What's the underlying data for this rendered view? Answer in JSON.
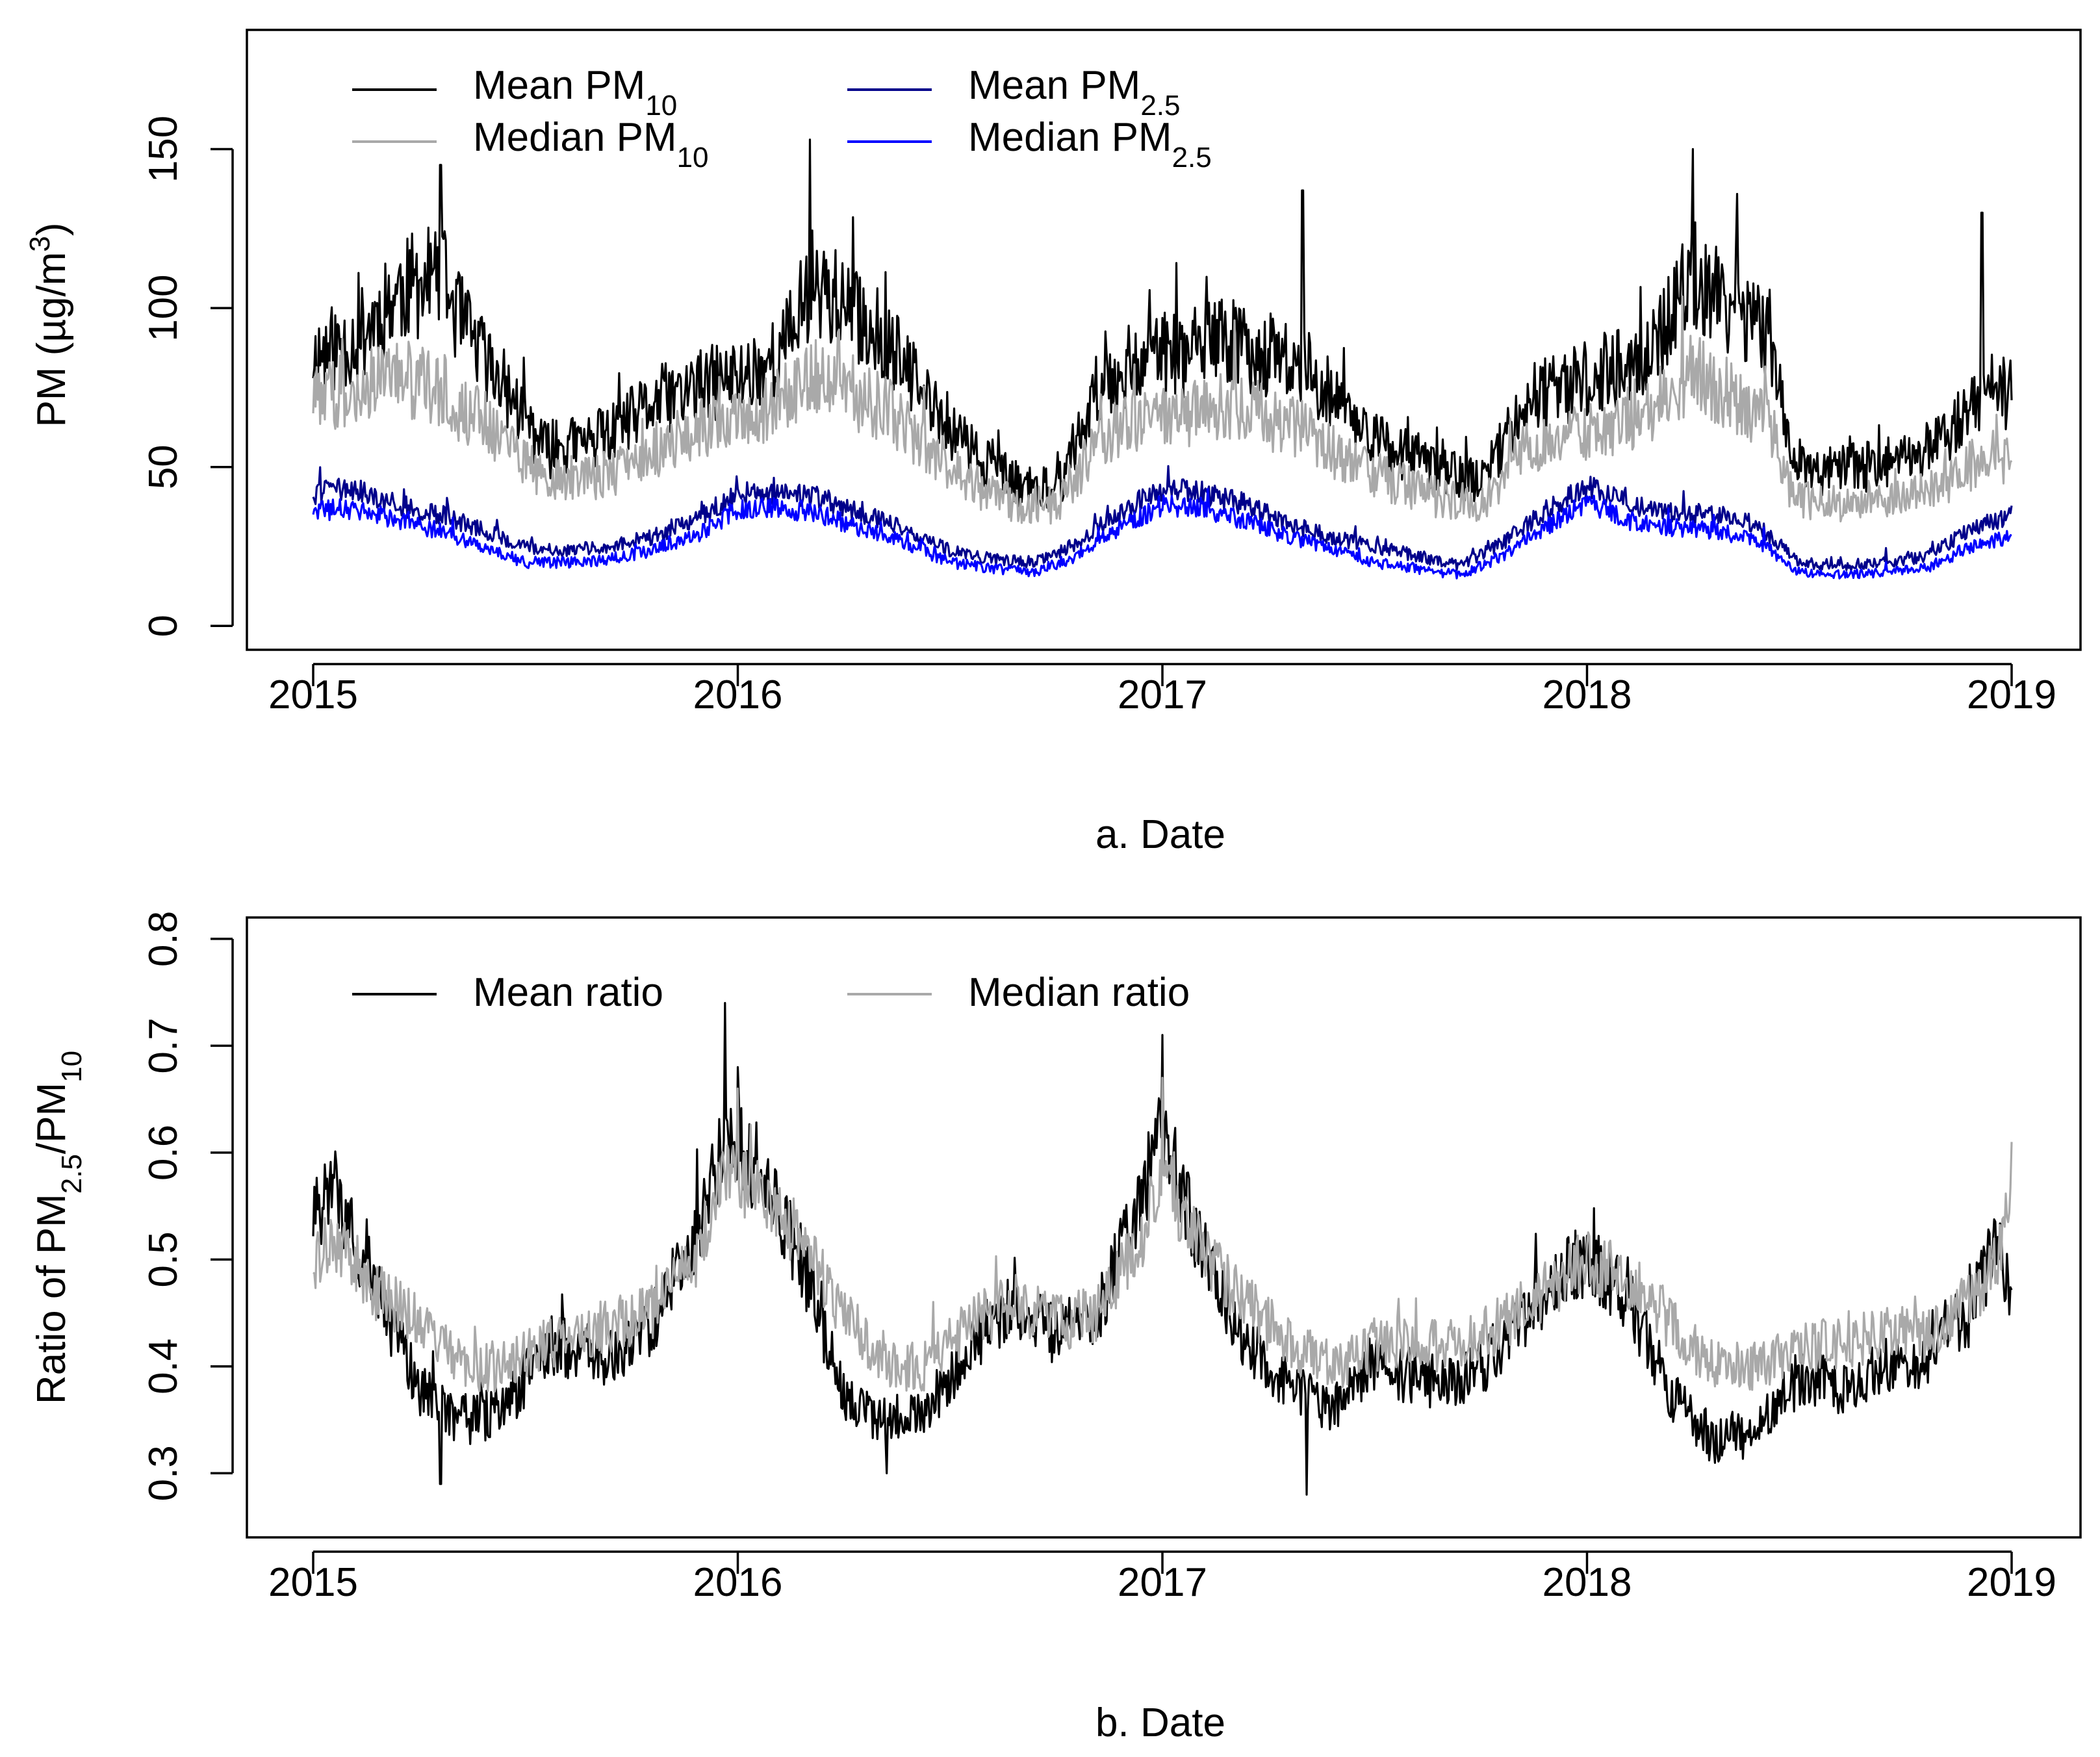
{
  "chart_data": [
    {
      "type": "line",
      "xlabel": "a. Date",
      "ylabel": {
        "base": "PM (µg/m",
        "sup": "3",
        "tail": ")"
      },
      "xlim": [
        2015,
        2019
      ],
      "ylim": [
        -7.5,
        187.5
      ],
      "x_ticks": [
        2015,
        2016,
        2017,
        2018,
        2019
      ],
      "x_tick_labels": [
        "2015",
        "2016",
        "2017",
        "2018",
        "2019"
      ],
      "y_ticks": [
        0,
        50,
        100,
        150
      ],
      "y_tick_labels": [
        "0",
        "50",
        "100",
        "150"
      ],
      "legend_position": "top-left",
      "series": [
        {
          "name": "Mean PM10",
          "label_main": "Mean PM",
          "label_sub": "10",
          "color": "#000000",
          "x": [
            2015.0,
            2015.1,
            2015.2,
            2015.3,
            2015.35,
            2015.45,
            2015.55,
            2015.7,
            2015.8,
            2015.9,
            2016.0,
            2016.1,
            2016.18,
            2016.25,
            2016.35,
            2016.45,
            2016.55,
            2016.65,
            2016.75,
            2016.85,
            2016.95,
            2017.05,
            2017.15,
            2017.25,
            2017.35,
            2017.45,
            2017.55,
            2017.65,
            2017.75,
            2017.85,
            2017.95,
            2018.05,
            2018.15,
            2018.25,
            2018.35,
            2018.43,
            2018.48,
            2018.55,
            2018.65,
            2018.75,
            2018.85,
            2018.95,
            2019.0
          ],
          "values": [
            85,
            90,
            105,
            110,
            95,
            75,
            55,
            60,
            70,
            75,
            78,
            85,
            110,
            100,
            90,
            70,
            55,
            45,
            42,
            75,
            85,
            85,
            90,
            85,
            80,
            65,
            55,
            50,
            45,
            70,
            75,
            80,
            85,
            110,
            100,
            90,
            55,
            48,
            50,
            52,
            60,
            75,
            72
          ],
          "spikes": [
            [
              2015.3,
              145
            ],
            [
              2016.17,
              153
            ],
            [
              2017.33,
              137
            ],
            [
              2018.25,
              150
            ],
            [
              2018.93,
              130
            ]
          ]
        },
        {
          "name": "Median PM10",
          "label_main": "Median PM",
          "label_sub": "10",
          "color": "#a9a9a9",
          "x": [
            2015.0,
            2015.1,
            2015.2,
            2015.3,
            2015.35,
            2015.45,
            2015.55,
            2015.7,
            2015.8,
            2015.9,
            2016.0,
            2016.1,
            2016.18,
            2016.25,
            2016.35,
            2016.45,
            2016.55,
            2016.65,
            2016.75,
            2016.85,
            2016.95,
            2017.05,
            2017.15,
            2017.25,
            2017.35,
            2017.45,
            2017.55,
            2017.65,
            2017.75,
            2017.85,
            2017.95,
            2018.05,
            2018.15,
            2018.25,
            2018.35,
            2018.43,
            2018.48,
            2018.55,
            2018.65,
            2018.75,
            2018.85,
            2018.95,
            2019.0
          ],
          "values": [
            72,
            75,
            78,
            75,
            68,
            60,
            45,
            48,
            55,
            62,
            65,
            70,
            80,
            75,
            68,
            55,
            45,
            38,
            38,
            58,
            65,
            65,
            70,
            65,
            60,
            50,
            45,
            40,
            38,
            55,
            60,
            62,
            68,
            80,
            72,
            65,
            42,
            38,
            40,
            40,
            45,
            55,
            50
          ]
        },
        {
          "name": "Mean PM2.5",
          "label_main": "Mean PM",
          "label_sub": "2.5",
          "color": "#00008b",
          "x": [
            2015.0,
            2015.1,
            2015.2,
            2015.3,
            2015.4,
            2015.5,
            2015.6,
            2015.7,
            2015.8,
            2015.9,
            2016.0,
            2016.1,
            2016.2,
            2016.3,
            2016.4,
            2016.5,
            2016.6,
            2016.7,
            2016.8,
            2016.9,
            2017.0,
            2017.1,
            2017.2,
            2017.3,
            2017.4,
            2017.5,
            2017.6,
            2017.7,
            2017.8,
            2017.9,
            2018.0,
            2018.1,
            2018.2,
            2018.3,
            2018.4,
            2018.5,
            2018.6,
            2018.7,
            2018.8,
            2018.9,
            2019.0
          ],
          "values": [
            42,
            43,
            38,
            35,
            30,
            25,
            24,
            25,
            28,
            33,
            42,
            42,
            40,
            35,
            30,
            24,
            21,
            20,
            26,
            36,
            43,
            42,
            38,
            32,
            28,
            25,
            22,
            19,
            26,
            36,
            44,
            38,
            36,
            35,
            32,
            20,
            19,
            20,
            22,
            30,
            35
          ]
        },
        {
          "name": "Median PM2.5",
          "label_main": "Median PM",
          "label_sub": "2.5",
          "color": "#0000ff",
          "x": [
            2015.0,
            2015.1,
            2015.2,
            2015.3,
            2015.4,
            2015.5,
            2015.6,
            2015.7,
            2015.8,
            2015.9,
            2016.0,
            2016.1,
            2016.2,
            2016.3,
            2016.4,
            2016.5,
            2016.6,
            2016.7,
            2016.8,
            2016.9,
            2017.0,
            2017.1,
            2017.2,
            2017.3,
            2017.4,
            2017.5,
            2017.6,
            2017.7,
            2017.8,
            2017.9,
            2018.0,
            2018.1,
            2018.2,
            2018.3,
            2018.4,
            2018.5,
            2018.6,
            2018.7,
            2018.8,
            2018.9,
            2019.0
          ],
          "values": [
            36,
            37,
            33,
            30,
            25,
            20,
            20,
            21,
            24,
            28,
            37,
            37,
            35,
            30,
            26,
            20,
            18,
            17,
            22,
            31,
            38,
            37,
            33,
            28,
            24,
            20,
            18,
            16,
            22,
            31,
            39,
            33,
            31,
            30,
            27,
            17,
            16,
            17,
            18,
            25,
            28
          ]
        }
      ]
    },
    {
      "type": "line",
      "xlabel": "b. Date",
      "ylabel": {
        "pre": "Ratio of PM",
        "sub1": "2.5",
        "mid": "/PM",
        "sub2": "10"
      },
      "xlim": [
        2015,
        2019
      ],
      "ylim": [
        0.24,
        0.82
      ],
      "x_ticks": [
        2015,
        2016,
        2017,
        2018,
        2019
      ],
      "x_tick_labels": [
        "2015",
        "2016",
        "2017",
        "2018",
        "2019"
      ],
      "y_ticks": [
        0.3,
        0.4,
        0.5,
        0.6,
        0.7,
        0.8
      ],
      "y_tick_labels": [
        "0.3",
        "0.4",
        "0.5",
        "0.6",
        "0.7",
        "0.8"
      ],
      "legend_position": "top-left",
      "series": [
        {
          "name": "Mean ratio",
          "color": "#000000",
          "x": [
            2015.0,
            2015.05,
            2015.15,
            2015.25,
            2015.35,
            2015.45,
            2015.55,
            2015.7,
            2015.8,
            2015.9,
            2015.97,
            2016.05,
            2016.15,
            2016.25,
            2016.35,
            2016.45,
            2016.55,
            2016.65,
            2016.75,
            2016.85,
            2016.95,
            2017.0,
            2017.1,
            2017.2,
            2017.3,
            2017.4,
            2017.5,
            2017.6,
            2017.7,
            2017.8,
            2017.9,
            2018.0,
            2018.1,
            2018.2,
            2018.3,
            2018.4,
            2018.5,
            2018.6,
            2018.7,
            2018.8,
            2018.9,
            2018.97,
            2019.0
          ],
          "values": [
            0.54,
            0.57,
            0.47,
            0.38,
            0.35,
            0.36,
            0.42,
            0.41,
            0.44,
            0.52,
            0.62,
            0.58,
            0.5,
            0.37,
            0.35,
            0.36,
            0.42,
            0.46,
            0.43,
            0.45,
            0.56,
            0.62,
            0.5,
            0.42,
            0.38,
            0.36,
            0.4,
            0.39,
            0.38,
            0.42,
            0.47,
            0.5,
            0.46,
            0.37,
            0.33,
            0.34,
            0.39,
            0.38,
            0.4,
            0.41,
            0.45,
            0.52,
            0.46
          ],
          "spikes": [
            [
              2015.97,
              0.74
            ],
            [
              2016.0,
              0.68
            ],
            [
              2017.0,
              0.71
            ],
            [
              2015.3,
              0.29
            ],
            [
              2016.35,
              0.3
            ],
            [
              2017.34,
              0.28
            ]
          ]
        },
        {
          "name": "Median ratio",
          "color": "#a9a9a9",
          "x": [
            2015.0,
            2015.05,
            2015.15,
            2015.25,
            2015.35,
            2015.45,
            2015.55,
            2015.7,
            2015.8,
            2015.9,
            2015.97,
            2016.05,
            2016.15,
            2016.25,
            2016.35,
            2016.45,
            2016.55,
            2016.65,
            2016.75,
            2016.85,
            2016.95,
            2017.0,
            2017.1,
            2017.2,
            2017.3,
            2017.4,
            2017.5,
            2017.6,
            2017.7,
            2017.8,
            2017.9,
            2018.0,
            2018.1,
            2018.2,
            2018.3,
            2018.4,
            2018.5,
            2018.6,
            2018.7,
            2018.8,
            2018.9,
            2018.97,
            2019.0
          ],
          "values": [
            0.5,
            0.52,
            0.47,
            0.44,
            0.4,
            0.4,
            0.42,
            0.44,
            0.45,
            0.5,
            0.58,
            0.56,
            0.52,
            0.45,
            0.4,
            0.4,
            0.44,
            0.46,
            0.44,
            0.45,
            0.52,
            0.58,
            0.5,
            0.46,
            0.42,
            0.4,
            0.42,
            0.42,
            0.42,
            0.44,
            0.47,
            0.5,
            0.48,
            0.44,
            0.4,
            0.4,
            0.42,
            0.42,
            0.43,
            0.43,
            0.46,
            0.5,
            0.56
          ],
          "spikes": [
            [
              2016.0,
              0.66
            ],
            [
              2017.0,
              0.67
            ],
            [
              2019.0,
              0.61
            ]
          ]
        }
      ]
    }
  ]
}
